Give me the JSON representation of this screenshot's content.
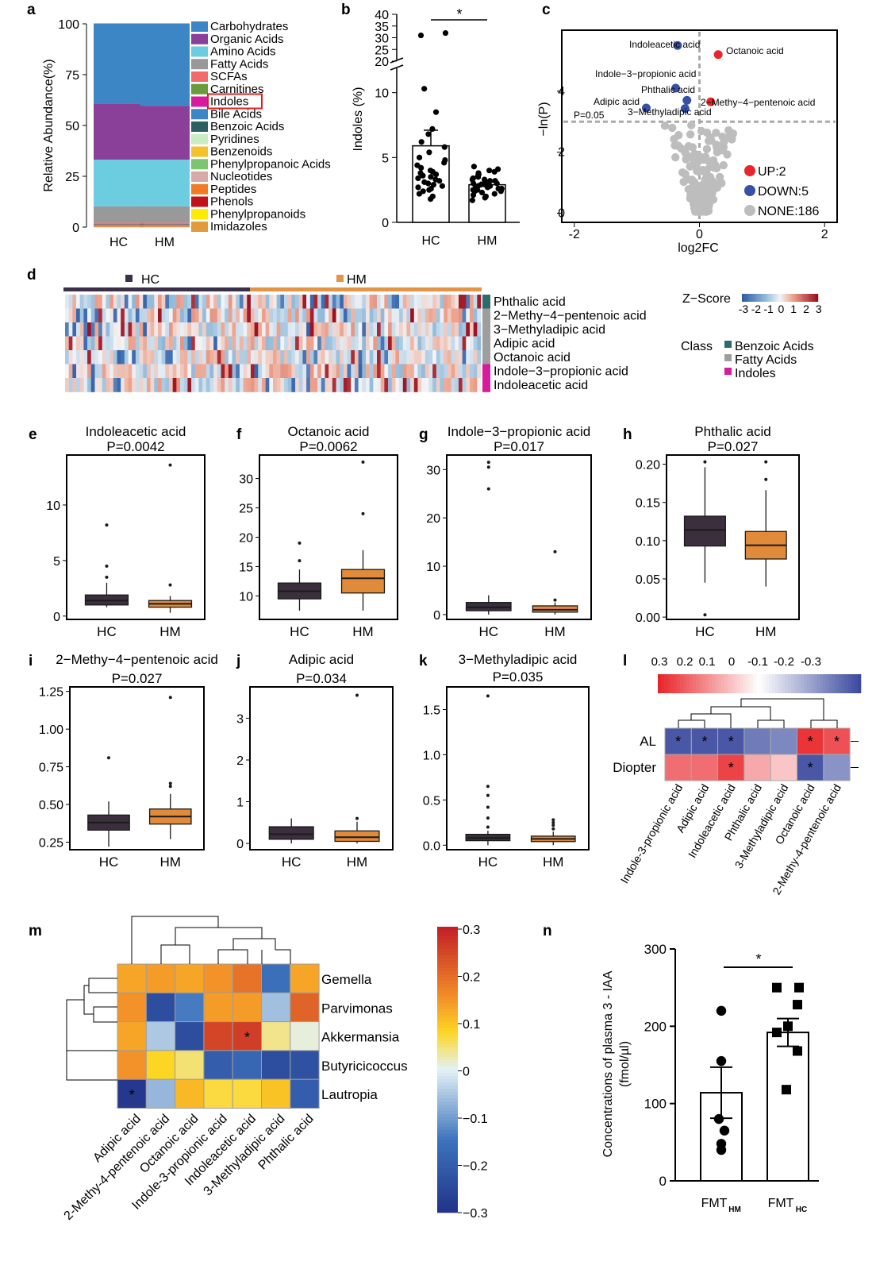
{
  "chart_data": [
    {
      "panel": "a",
      "type": "bar",
      "stacked": true,
      "categories": [
        "HC",
        "HM"
      ],
      "ylabel": "Relative Abundance(%)",
      "ylim": [
        0,
        100
      ],
      "yticks": [
        0,
        25,
        50,
        75,
        100
      ],
      "legend": "right",
      "highlighted": "Indoles",
      "series": [
        {
          "name": "Carbohydrates",
          "color": "#3d86c6",
          "values": [
            39.5,
            40.5
          ]
        },
        {
          "name": "Organic Acids",
          "color": "#8a3f99",
          "values": [
            27.5,
            26.5
          ]
        },
        {
          "name": "Amino Acids",
          "color": "#6ccde0",
          "values": [
            23,
            23
          ]
        },
        {
          "name": "Fatty Acids",
          "color": "#999999",
          "values": [
            8,
            8
          ]
        },
        {
          "name": "SCFAs",
          "color": "#f26b6b",
          "values": [
            0.5,
            0.5
          ]
        },
        {
          "name": "Carnitines",
          "color": "#6b9b3a",
          "values": [
            0.3,
            0.3
          ]
        },
        {
          "name": "Indoles",
          "color": "#d81b9c",
          "values": [
            0.2,
            0.2
          ]
        },
        {
          "name": "Bile Acids",
          "color": "#3d86c6",
          "values": [
            0.2,
            0.2
          ]
        },
        {
          "name": "Benzoic Acids",
          "color": "#2c6060",
          "values": [
            0.1,
            0.1
          ]
        },
        {
          "name": "Pyridines",
          "color": "#c9ecc3",
          "values": [
            0.1,
            0.1
          ]
        },
        {
          "name": "Benzenoids",
          "color": "#f5c12e",
          "values": [
            0.1,
            0.1
          ]
        },
        {
          "name": "Phenylpropanoic Acids",
          "color": "#7dc470",
          "values": [
            0.1,
            0.1
          ]
        },
        {
          "name": "Nucleotides",
          "color": "#d7a9a9",
          "values": [
            0.1,
            0.1
          ]
        },
        {
          "name": "Peptides",
          "color": "#f07a26",
          "values": [
            0.2,
            0.2
          ]
        },
        {
          "name": "Phenols",
          "color": "#c1121c",
          "values": [
            0.1,
            0.1
          ]
        },
        {
          "name": "Phenylpropanoids",
          "color": "#ffeb00",
          "values": [
            0.1,
            0.1
          ]
        },
        {
          "name": "Imidazoles",
          "color": "#e29a3b",
          "values": [
            0.1,
            0.1
          ]
        }
      ]
    },
    {
      "panel": "b",
      "type": "bar",
      "categories": [
        "HC",
        "HM"
      ],
      "values": [
        5.9,
        2.9
      ],
      "errors": [
        1.2,
        0.2
      ],
      "ylabel": "Indoles (%)",
      "yticks": [
        0,
        5,
        10,
        20,
        25,
        30,
        35,
        40
      ],
      "broken_axis": [
        12,
        20
      ],
      "significance": "*",
      "points": [
        [
          1.8,
          2.0,
          2.2,
          2.4,
          2.5,
          2.6,
          2.7,
          2.8,
          2.9,
          3.0,
          3.1,
          3.2,
          3.3,
          3.4,
          3.5,
          3.6,
          3.7,
          3.8,
          3.9,
          4.0,
          4.2,
          4.4,
          4.6,
          4.8,
          5.0,
          5.4,
          5.8,
          6.2,
          6.8,
          7.2,
          8.5,
          10.3,
          31,
          32
        ],
        [
          1.7,
          1.9,
          2.0,
          2.1,
          2.2,
          2.3,
          2.4,
          2.4,
          2.5,
          2.5,
          2.6,
          2.6,
          2.7,
          2.7,
          2.8,
          2.8,
          2.9,
          2.9,
          3.0,
          3.0,
          3.1,
          3.1,
          3.2,
          3.2,
          3.3,
          3.3,
          3.4,
          3.5,
          3.6,
          3.7,
          3.8,
          3.9,
          4.0,
          4.1,
          4.3
        ]
      ]
    },
    {
      "panel": "c",
      "type": "scatter",
      "xlabel": "log2FC",
      "ylabel": "−ln(P)",
      "xlim": [
        -2.2,
        2.2
      ],
      "ylim": [
        -0.3,
        6.0
      ],
      "xticks": [
        -2,
        0,
        2
      ],
      "yticks": [
        0,
        2,
        4
      ],
      "threshold_label": "P=0.05",
      "threshold_y": 3.0,
      "legend": [
        {
          "label": "UP:2",
          "color": "#e8252a"
        },
        {
          "label": "DOWN:5",
          "color": "#3550a5"
        },
        {
          "label": "NONE:186",
          "color": "#bdbdbd"
        }
      ],
      "labeled_points": [
        {
          "name": "Indoleacetic acid",
          "x": -0.35,
          "y": 5.5,
          "group": "down"
        },
        {
          "name": "Octanoic acid",
          "x": 0.3,
          "y": 5.2,
          "group": "up"
        },
        {
          "name": "Indole−3−propionic acid",
          "x": -0.38,
          "y": 4.1,
          "group": "down"
        },
        {
          "name": "Phthalic acid",
          "x": -0.2,
          "y": 3.7,
          "group": "down"
        },
        {
          "name": "2−Methy−4−pentenoic acid",
          "x": 0.18,
          "y": 3.65,
          "group": "up"
        },
        {
          "name": "Adipic acid",
          "x": -0.85,
          "y": 3.45,
          "group": "down"
        },
        {
          "name": "3−Methyladipic acid",
          "x": -0.23,
          "y": 3.43,
          "group": "down"
        }
      ]
    },
    {
      "panel": "d",
      "type": "heatmap",
      "groups": [
        {
          "name": "HC",
          "color": "#3b2f4a"
        },
        {
          "name": "HM",
          "color": "#e39446"
        }
      ],
      "rows": [
        {
          "name": "Phthalic acid",
          "class": "Benzoic Acids"
        },
        {
          "name": "2−Methy−4−pentenoic acid",
          "class": "Fatty Acids"
        },
        {
          "name": "3−Methyladipic acid",
          "class": "Fatty Acids"
        },
        {
          "name": "Adipic acid",
          "class": "Fatty Acids"
        },
        {
          "name": "Octanoic acid",
          "class": "Fatty Acids"
        },
        {
          "name": "Indole−3−propionic acid",
          "class": "Indoles"
        },
        {
          "name": "Indoleacetic acid",
          "class": "Indoles"
        }
      ],
      "zscore_label": "Z−Score",
      "zscore_ticks": [
        "-3",
        "-2",
        "-1",
        "0",
        "1",
        "2",
        "3"
      ],
      "class_label": "Class",
      "classes": [
        {
          "name": "Benzoic Acids",
          "color": "#2e6a6a"
        },
        {
          "name": "Fatty Acids",
          "color": "#9e9e9e"
        },
        {
          "name": "Indoles",
          "color": "#d81b9c"
        }
      ]
    },
    {
      "panel": "e",
      "type": "box",
      "title": "Indoleacetic acid",
      "p": "P=0.0042",
      "categories": [
        "HC",
        "HM"
      ],
      "ylim": [
        -0.3,
        14.5
      ],
      "yticks": [
        "0",
        "5",
        "10"
      ],
      "boxes": [
        {
          "min": 0.8,
          "q1": 1.0,
          "median": 1.4,
          "q3": 1.9,
          "max": 3.0,
          "outliers": [
            3.5,
            4.5,
            8.2
          ]
        },
        {
          "min": 0.3,
          "q1": 0.8,
          "median": 1.1,
          "q3": 1.4,
          "max": 1.8,
          "outliers": [
            2.8,
            13.6
          ]
        }
      ]
    },
    {
      "panel": "f",
      "type": "box",
      "title": "Octanoic acid",
      "p": "P=0.0062",
      "categories": [
        "HC",
        "HM"
      ],
      "ylim": [
        6.0,
        34.0
      ],
      "yticks": [
        "10",
        "15",
        "20",
        "25",
        "30"
      ],
      "boxes": [
        {
          "min": 7.5,
          "q1": 9.5,
          "median": 10.8,
          "q3": 12.2,
          "max": 14.5,
          "outliers": [
            16.0,
            19.0
          ]
        },
        {
          "min": 7.5,
          "q1": 10.5,
          "median": 13.0,
          "q3": 14.5,
          "max": 17.8,
          "outliers": [
            24.0,
            32.8
          ]
        }
      ]
    },
    {
      "panel": "g",
      "type": "box",
      "title": "Indole−3−propionic acid",
      "p": "P=0.017",
      "categories": [
        "HC",
        "HM"
      ],
      "ylim": [
        -1.0,
        33.0
      ],
      "yticks": [
        "0",
        "10",
        "20",
        "30"
      ],
      "boxes": [
        {
          "min": 0.0,
          "q1": 0.8,
          "median": 1.5,
          "q3": 2.5,
          "max": 4.0,
          "outliers": [
            26.0,
            30.5,
            31.5
          ]
        },
        {
          "min": 0.0,
          "q1": 0.5,
          "median": 1.0,
          "q3": 1.8,
          "max": 2.5,
          "outliers": [
            3.0,
            13.0
          ]
        }
      ]
    },
    {
      "panel": "h",
      "type": "box",
      "title": "Phthalic acid",
      "p": "P=0.027",
      "categories": [
        "HC",
        "HM"
      ],
      "ylim": [
        -0.003,
        0.212
      ],
      "yticks": [
        "0.00",
        "0.05",
        "0.10",
        "0.15",
        "0.20"
      ],
      "boxes": [
        {
          "min": 0.045,
          "q1": 0.093,
          "median": 0.114,
          "q3": 0.132,
          "max": 0.196,
          "outliers": [
            0.003,
            0.203
          ]
        },
        {
          "min": 0.04,
          "q1": 0.076,
          "median": 0.094,
          "q3": 0.112,
          "max": 0.166,
          "outliers": [
            0.18,
            0.203
          ]
        }
      ]
    },
    {
      "panel": "i",
      "type": "box",
      "title": "2−Methy−4−pentenoic acid",
      "p": "P=0.027",
      "categories": [
        "HC",
        "HM"
      ],
      "ylim": [
        0.2,
        1.28
      ],
      "yticks": [
        "0.25",
        "0.50",
        "0.75",
        "1.00",
        "1.25"
      ],
      "boxes": [
        {
          "min": 0.22,
          "q1": 0.33,
          "median": 0.38,
          "q3": 0.43,
          "max": 0.52,
          "outliers": [
            0.81
          ]
        },
        {
          "min": 0.27,
          "q1": 0.37,
          "median": 0.42,
          "q3": 0.47,
          "max": 0.57,
          "outliers": [
            0.62,
            0.64,
            1.21
          ]
        }
      ]
    },
    {
      "panel": "j",
      "type": "box",
      "title": "Adipic acid",
      "p": "P=0.034",
      "categories": [
        "HC",
        "HM"
      ],
      "ylim": [
        -0.15,
        3.75
      ],
      "yticks": [
        "0",
        "1",
        "2",
        "3"
      ],
      "boxes": [
        {
          "min": 0.0,
          "q1": 0.1,
          "median": 0.22,
          "q3": 0.4,
          "max": 0.6,
          "outliers": []
        },
        {
          "min": 0.0,
          "q1": 0.05,
          "median": 0.15,
          "q3": 0.3,
          "max": 0.52,
          "outliers": [
            0.6,
            3.55
          ]
        }
      ]
    },
    {
      "panel": "k",
      "type": "box",
      "title": "3−Methyladipic acid",
      "p": "P=0.035",
      "categories": [
        "HC",
        "HM"
      ],
      "ylim": [
        -0.05,
        1.75
      ],
      "yticks": [
        "0.0",
        "0.5",
        "1.0",
        "1.5"
      ],
      "boxes": [
        {
          "min": 0.0,
          "q1": 0.05,
          "median": 0.08,
          "q3": 0.12,
          "max": 0.16,
          "outliers": [
            0.2,
            0.3,
            0.42,
            0.55,
            0.65,
            1.65
          ]
        },
        {
          "min": 0.0,
          "q1": 0.04,
          "median": 0.07,
          "q3": 0.1,
          "max": 0.15,
          "outliers": [
            0.18,
            0.22,
            0.25,
            0.28
          ]
        }
      ]
    },
    {
      "panel": "l",
      "type": "heatmap",
      "scale_ticks": [
        "0.3",
        "0.2",
        "0.1",
        "0",
        "-0.1",
        "-0.2",
        "-0.3"
      ],
      "rows": [
        "AL",
        "Diopter"
      ],
      "columns": [
        "Indole-3-propionic acid",
        "Adipic acid",
        "Indoleacetic acid",
        "Phthalic acid",
        "3-Methyladipic acid",
        "Octanoic acid",
        "2-Methy-4-pentenoic acid"
      ],
      "values": [
        [
          -0.28,
          -0.28,
          -0.28,
          -0.22,
          -0.2,
          0.28,
          0.24
        ],
        [
          0.2,
          0.2,
          0.26,
          0.12,
          0.08,
          -0.28,
          -0.18
        ]
      ],
      "stars": [
        [
          true,
          true,
          true,
          false,
          false,
          true,
          true
        ],
        [
          false,
          false,
          true,
          false,
          false,
          true,
          false
        ]
      ]
    },
    {
      "panel": "m",
      "type": "heatmap",
      "rows": [
        "Gemella",
        "Parvimonas",
        "Akkermansia",
        "Butyricicoccus",
        "Lautropia"
      ],
      "columns": [
        "Adipic acid",
        "2-Methy-4-pentenoic acid",
        "Octanoic acid",
        "Indole-3-propionic acid",
        "Indoleacetic acid",
        "3-Methyladipic acid",
        "Phthalic acid"
      ],
      "values": [
        [
          0.13,
          0.14,
          0.13,
          0.15,
          0.19,
          -0.16,
          0.13
        ],
        [
          0.15,
          -0.24,
          -0.14,
          0.14,
          0.14,
          -0.06,
          0.21
        ],
        [
          0.13,
          -0.05,
          -0.24,
          0.25,
          0.26,
          0.04,
          0.01
        ],
        [
          0.15,
          0.08,
          0.05,
          -0.2,
          -0.18,
          -0.24,
          -0.23
        ],
        [
          -0.29,
          -0.07,
          0.11,
          0.07,
          0.07,
          0.1,
          -0.2
        ]
      ],
      "stars": [
        [
          false,
          false,
          false,
          false,
          false,
          false,
          false
        ],
        [
          false,
          false,
          false,
          false,
          false,
          false,
          false
        ],
        [
          false,
          false,
          false,
          false,
          true,
          false,
          false
        ],
        [
          false,
          false,
          false,
          false,
          false,
          false,
          false
        ],
        [
          true,
          false,
          false,
          false,
          false,
          false,
          false
        ]
      ],
      "scale_ticks": [
        "0.3",
        "0.2",
        "0.1",
        "0",
        "−0.1",
        "−0.2",
        "−0.3"
      ],
      "scale_values": [
        0.3,
        0.2,
        0.1,
        0,
        -0.1,
        -0.2,
        -0.3
      ]
    },
    {
      "panel": "n",
      "type": "bar",
      "categories": [
        "FMT",
        "FMT"
      ],
      "subscripts": [
        "HM",
        "HC"
      ],
      "values": [
        114,
        192
      ],
      "errors": [
        33,
        18
      ],
      "ylabel": "Concentrations of plasma 3 - IAA",
      "ylabel2": "(fmol/µl)",
      "ylim": [
        0,
        300
      ],
      "yticks": [
        0,
        100,
        200,
        300
      ],
      "significance": "*",
      "points": [
        [
          220,
          155,
          80,
          65,
          48,
          40
        ],
        [
          250,
          250,
          228,
          200,
          192,
          168,
          118
        ]
      ]
    }
  ],
  "panel_labels": [
    "a",
    "b",
    "c",
    "d",
    "e",
    "f",
    "g",
    "h",
    "i",
    "j",
    "k",
    "l",
    "m",
    "n"
  ]
}
